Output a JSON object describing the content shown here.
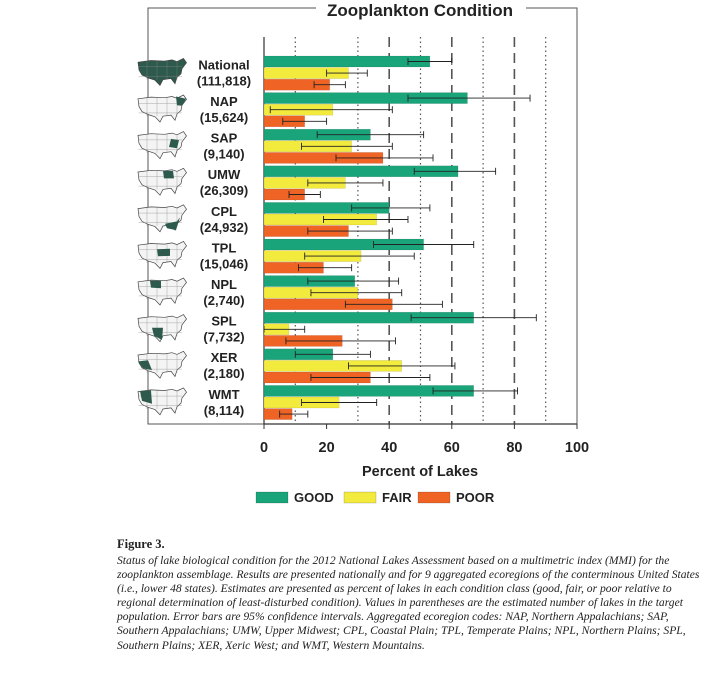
{
  "chart_data": {
    "type": "bar",
    "title": "Zooplankton Condition",
    "xlabel": "Percent of Lakes",
    "xlim": [
      0,
      100
    ],
    "xticks": [
      "0",
      "20",
      "40",
      "60",
      "80",
      "100"
    ],
    "gridlines_at": [
      10,
      30,
      50,
      70,
      90
    ],
    "dashed_lines_at": [
      40,
      60,
      80
    ],
    "legend_position": "bottom",
    "categories": [
      {
        "name": "National",
        "count": "(111,818)"
      },
      {
        "name": "NAP",
        "count": "(15,624)"
      },
      {
        "name": "SAP",
        "count": "(9,140)"
      },
      {
        "name": "UMW",
        "count": "(26,309)"
      },
      {
        "name": "CPL",
        "count": "(24,932)"
      },
      {
        "name": "TPL",
        "count": "(15,046)"
      },
      {
        "name": "NPL",
        "count": "(2,740)"
      },
      {
        "name": "SPL",
        "count": "(7,732)"
      },
      {
        "name": "XER",
        "count": "(2,180)"
      },
      {
        "name": "WMT",
        "count": "(8,114)"
      }
    ],
    "series": [
      {
        "name": "GOOD",
        "color": "#1aa47a",
        "values": [
          53,
          65,
          34,
          62,
          40,
          51,
          29,
          67,
          22,
          67
        ],
        "ci_low": [
          46,
          46,
          17,
          48,
          28,
          35,
          14,
          47,
          10,
          54
        ],
        "ci_high": [
          60,
          85,
          51,
          74,
          53,
          67,
          43,
          87,
          34,
          81
        ]
      },
      {
        "name": "FAIR",
        "color": "#f2ea3c",
        "values": [
          27,
          22,
          28,
          26,
          36,
          31,
          30,
          8,
          44,
          24
        ],
        "ci_low": [
          20,
          2,
          12,
          14,
          19,
          13,
          15,
          0,
          27,
          12
        ],
        "ci_high": [
          33,
          41,
          41,
          38,
          46,
          48,
          44,
          13,
          61,
          36
        ]
      },
      {
        "name": "POOR",
        "color": "#ef6325",
        "values": [
          21,
          13,
          38,
          13,
          27,
          19,
          41,
          25,
          34,
          9
        ],
        "ci_low": [
          16,
          6,
          23,
          8,
          14,
          11,
          26,
          7,
          15,
          5
        ],
        "ci_high": [
          26,
          20,
          54,
          18,
          41,
          28,
          57,
          42,
          53,
          14
        ]
      }
    ]
  },
  "caption": {
    "label": "Figure 3.",
    "text": "Status of lake biological condition for the 2012 National Lakes Assessment based on a multimetric index (MMI) for the zooplankton assemblage. Results are presented nationally and for 9 aggregated ecoregions of the conterminous United States (i.e., lower 48 states). Estimates are presented as percent of lakes in each condition class (good, fair, or poor relative to regional determination of least-disturbed condition). Values in parentheses are the estimated number of lakes in the target population. Error bars are 95% confidence intervals. Aggregated ecoregion codes: NAP, Northern Appalachians; SAP, Southern Appalachians; UMW, Upper Midwest; CPL, Coastal Plain; TPL, Temperate Plains; NPL, Northern Plains; SPL, Southern Plains; XER, Xeric West; and WMT, Western Mountains."
  },
  "colors": {
    "good": "#1aa47a",
    "fair": "#f2ea3c",
    "poor": "#ef6325",
    "map_fill": "#2d5a4c"
  }
}
